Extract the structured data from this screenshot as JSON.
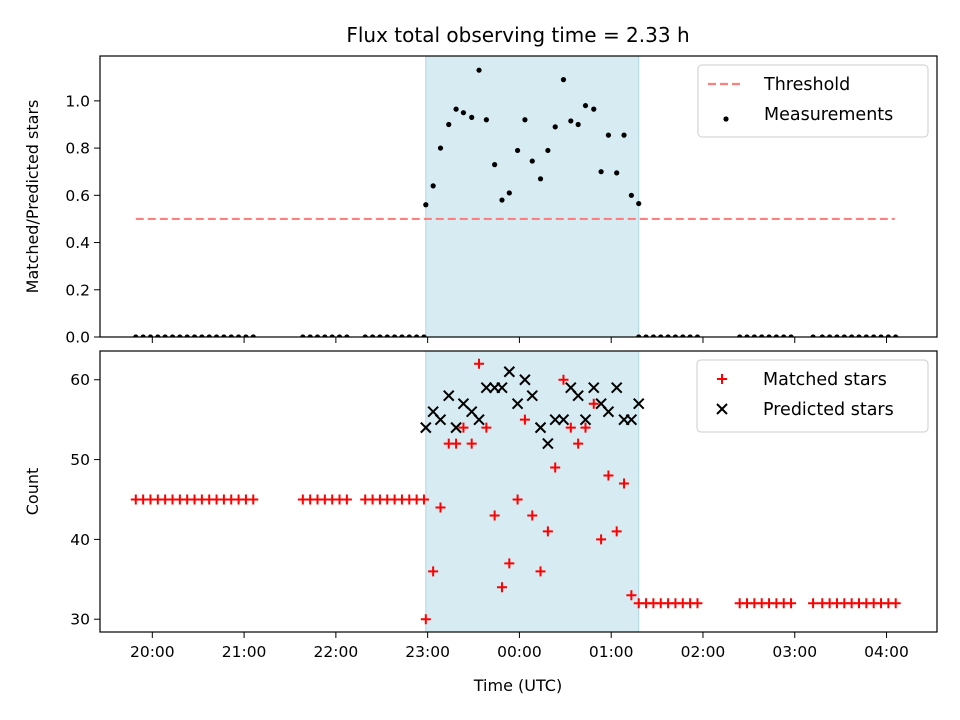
{
  "chart_data": {
    "title": "Flux total observing time = 2.33 h",
    "xlabel": "Time (UTC)",
    "x_unit": "hours (UTC, values past 24 = next day)",
    "xlim": [
      19.43,
      28.55
    ],
    "x_ticks": [
      {
        "value": 20,
        "label": "20:00"
      },
      {
        "value": 21,
        "label": "21:00"
      },
      {
        "value": 22,
        "label": "22:00"
      },
      {
        "value": 23,
        "label": "23:00"
      },
      {
        "value": 24,
        "label": "00:00"
      },
      {
        "value": 25,
        "label": "01:00"
      },
      {
        "value": 26,
        "label": "02:00"
      },
      {
        "value": 27,
        "label": "03:00"
      },
      {
        "value": 28,
        "label": "04:00"
      }
    ],
    "observing_window": {
      "start": 22.98,
      "end": 25.3,
      "color": "#add8e6"
    },
    "panels": [
      {
        "id": "ratio",
        "type": "scatter",
        "ylabel": "Matched/Predicted stars",
        "ylim": [
          0,
          1.19
        ],
        "y_ticks": [
          {
            "value": 0.0,
            "label": "0.0"
          },
          {
            "value": 0.2,
            "label": "0.2"
          },
          {
            "value": 0.4,
            "label": "0.4"
          },
          {
            "value": 0.6,
            "label": "0.6"
          },
          {
            "value": 0.8,
            "label": "0.8"
          },
          {
            "value": 1.0,
            "label": "1.0"
          }
        ],
        "legend": {
          "placement": "top-right",
          "entries": [
            {
              "label": "Threshold",
              "marker": "dashed-line",
              "color": "#ff7f7f"
            },
            {
              "label": "Measurements",
              "marker": "dot",
              "color": "#000000"
            }
          ]
        },
        "threshold": {
          "name": "Threshold",
          "value": 0.5,
          "x_range": [
            19.82,
            28.09
          ],
          "color": "#ff7f7f"
        },
        "series": [
          {
            "name": "Measurements",
            "marker": "dot",
            "color": "#000000",
            "x": [
              19.82,
              19.9,
              19.98,
              20.06,
              20.14,
              20.22,
              20.3,
              20.38,
              20.46,
              20.54,
              20.62,
              20.7,
              20.78,
              20.86,
              20.94,
              21.02,
              21.1,
              21.64,
              21.72,
              21.8,
              21.88,
              21.96,
              22.04,
              22.12,
              22.32,
              22.4,
              22.48,
              22.56,
              22.64,
              22.72,
              22.8,
              22.88,
              22.96,
              22.98,
              23.06,
              23.14,
              23.23,
              23.31,
              23.39,
              23.48,
              23.56,
              23.64,
              23.73,
              23.81,
              23.89,
              23.98,
              24.06,
              24.14,
              24.23,
              24.31,
              24.39,
              24.48,
              24.56,
              24.64,
              24.72,
              24.81,
              24.89,
              24.97,
              25.06,
              25.14,
              25.22,
              25.3,
              25.3,
              25.38,
              25.46,
              25.54,
              25.62,
              25.7,
              25.78,
              25.86,
              25.94,
              26.4,
              26.48,
              26.56,
              26.64,
              26.72,
              26.8,
              26.88,
              26.96,
              27.2,
              27.3,
              27.38,
              27.46,
              27.54,
              27.62,
              27.7,
              27.78,
              27.86,
              27.94,
              28.02,
              28.1
            ],
            "y": [
              0,
              0,
              0,
              0,
              0,
              0,
              0,
              0,
              0,
              0,
              0,
              0,
              0,
              0,
              0,
              0,
              0,
              0,
              0,
              0,
              0,
              0,
              0,
              0,
              0,
              0,
              0,
              0,
              0,
              0,
              0,
              0,
              0,
              0.56,
              0.64,
              0.8,
              0.9,
              0.965,
              0.95,
              0.93,
              1.13,
              0.92,
              0.73,
              0.58,
              0.61,
              0.79,
              0.92,
              0.745,
              0.67,
              0.79,
              0.89,
              1.09,
              0.915,
              0.9,
              0.98,
              0.965,
              0.7,
              0.855,
              0.695,
              0.855,
              0.6,
              0.565,
              0,
              0,
              0,
              0,
              0,
              0,
              0,
              0,
              0,
              0,
              0,
              0,
              0,
              0,
              0,
              0,
              0,
              0,
              0,
              0,
              0,
              0,
              0,
              0,
              0,
              0,
              0,
              0,
              0
            ]
          }
        ]
      },
      {
        "id": "counts",
        "type": "scatter",
        "ylabel": "Count",
        "ylim": [
          28.4,
          63.6
        ],
        "y_ticks": [
          {
            "value": 30,
            "label": "30"
          },
          {
            "value": 40,
            "label": "40"
          },
          {
            "value": 50,
            "label": "50"
          },
          {
            "value": 60,
            "label": "60"
          }
        ],
        "legend": {
          "placement": "top-right",
          "entries": [
            {
              "label": "Matched stars",
              "marker": "plus",
              "color": "#ff0000"
            },
            {
              "label": "Predicted stars",
              "marker": "cross",
              "color": "#000000"
            }
          ]
        },
        "series": [
          {
            "name": "Matched stars",
            "marker": "plus",
            "color": "#ff0000",
            "x": [
              19.82,
              19.9,
              19.98,
              20.06,
              20.14,
              20.22,
              20.3,
              20.38,
              20.46,
              20.54,
              20.62,
              20.7,
              20.78,
              20.86,
              20.94,
              21.02,
              21.1,
              21.64,
              21.72,
              21.8,
              21.88,
              21.96,
              22.04,
              22.12,
              22.32,
              22.4,
              22.48,
              22.56,
              22.64,
              22.72,
              22.8,
              22.88,
              22.96,
              22.98,
              23.06,
              23.14,
              23.23,
              23.31,
              23.39,
              23.48,
              23.56,
              23.64,
              23.73,
              23.81,
              23.89,
              23.98,
              24.06,
              24.14,
              24.23,
              24.31,
              24.39,
              24.48,
              24.56,
              24.64,
              24.72,
              24.81,
              24.89,
              24.97,
              25.06,
              25.14,
              25.22,
              25.3,
              25.38,
              25.46,
              25.54,
              25.62,
              25.7,
              25.78,
              25.86,
              25.94,
              26.4,
              26.48,
              26.56,
              26.64,
              26.72,
              26.8,
              26.88,
              26.96,
              27.2,
              27.3,
              27.38,
              27.46,
              27.54,
              27.62,
              27.7,
              27.78,
              27.86,
              27.94,
              28.02,
              28.1
            ],
            "y": [
              45,
              45,
              45,
              45,
              45,
              45,
              45,
              45,
              45,
              45,
              45,
              45,
              45,
              45,
              45,
              45,
              45,
              45,
              45,
              45,
              45,
              45,
              45,
              45,
              45,
              45,
              45,
              45,
              45,
              45,
              45,
              45,
              45,
              30,
              36,
              44,
              52,
              52,
              54,
              52,
              62,
              54,
              43,
              34,
              37,
              45,
              55,
              43,
              36,
              41,
              49,
              60,
              54,
              52,
              54,
              57,
              40,
              48,
              41,
              47,
              33,
              32,
              32,
              32,
              32,
              32,
              32,
              32,
              32,
              32,
              32,
              32,
              32,
              32,
              32,
              32,
              32,
              32,
              32,
              32,
              32,
              32,
              32,
              32,
              32,
              32,
              32,
              32,
              32,
              32
            ]
          },
          {
            "name": "Predicted stars",
            "marker": "cross",
            "color": "#000000",
            "x": [
              22.98,
              23.06,
              23.14,
              23.23,
              23.31,
              23.39,
              23.48,
              23.56,
              23.64,
              23.73,
              23.81,
              23.89,
              23.98,
              24.06,
              24.14,
              24.23,
              24.31,
              24.39,
              24.48,
              24.56,
              24.64,
              24.72,
              24.81,
              24.89,
              24.97,
              25.06,
              25.14,
              25.22,
              25.3
            ],
            "y": [
              54,
              56,
              55,
              58,
              54,
              57,
              56,
              55,
              59,
              59,
              59,
              61,
              57,
              60,
              58,
              54,
              52,
              55,
              55,
              59,
              58,
              55,
              59,
              57,
              56,
              59,
              55,
              55,
              57
            ]
          }
        ]
      }
    ]
  }
}
